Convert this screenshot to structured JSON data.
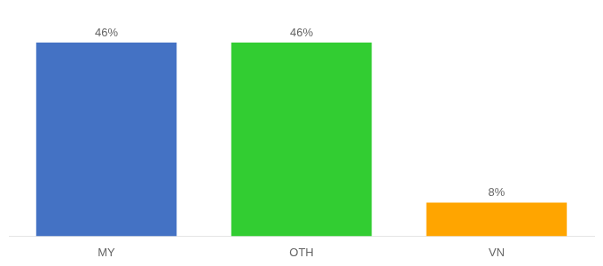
{
  "chart_data": {
    "type": "bar",
    "categories": [
      "MY",
      "OTH",
      "VN"
    ],
    "values": [
      46,
      46,
      8
    ],
    "value_labels": [
      "46%",
      "46%",
      "8%"
    ],
    "colors": [
      "#4472C4",
      "#32CD32",
      "#FFA500"
    ],
    "ylim": [
      0,
      54
    ],
    "data_labels": true,
    "tick_labels": "x",
    "grid": false
  }
}
